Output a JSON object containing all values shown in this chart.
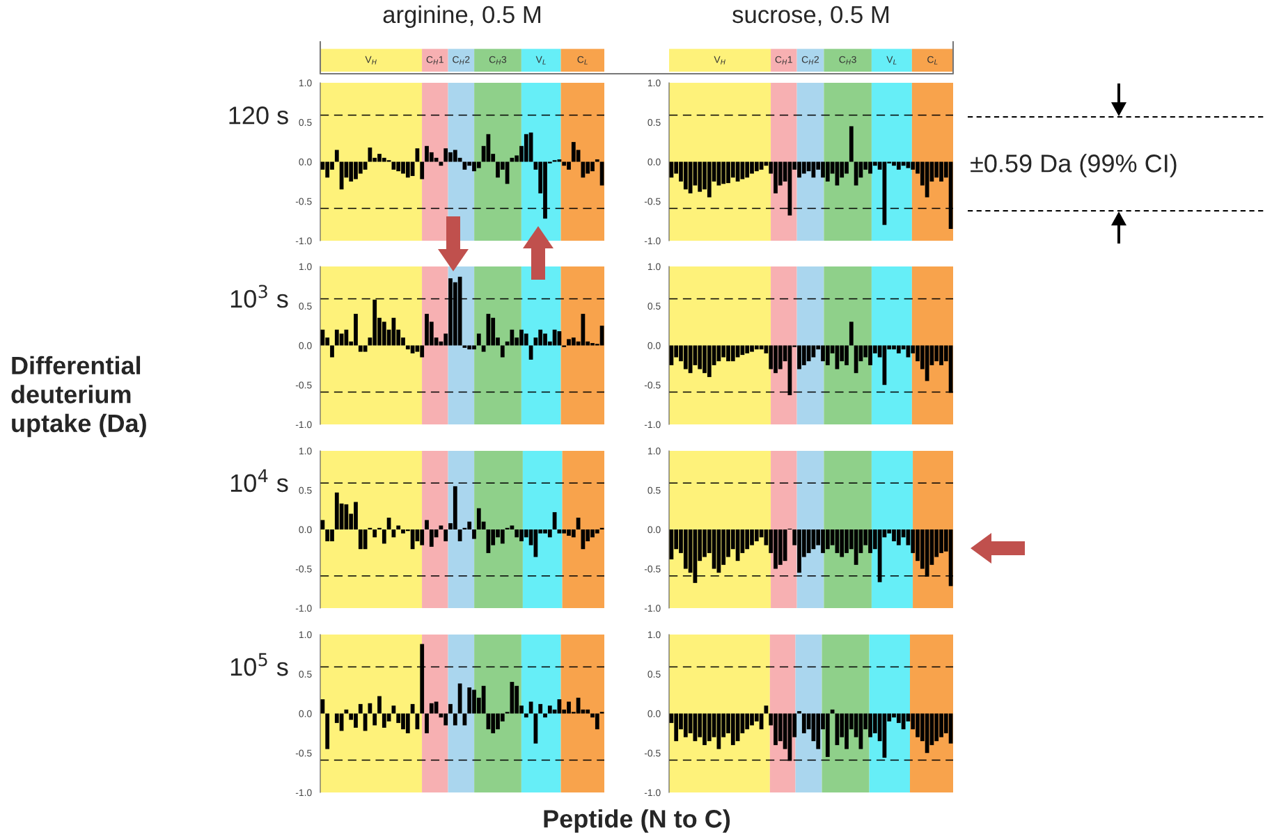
{
  "chart_data": [
    {
      "type": "bar",
      "title": "arginine, 0.5 M",
      "ylabel": "120 s",
      "annotations": [
        "Differential\ndeuterium\nuptake (Da)",
        "V$_{H}$",
        "C$_{H}$1",
        "C$_{H}$2",
        "C$_{H}$3",
        "V$_{L}$",
        "C$_{L}$"
      ],
      "ylim": [
        -1,
        1
      ],
      "yticks": [
        {
          "value": -1,
          "label": "-1.0"
        },
        {
          "value": -0.5,
          "label": "-0.5"
        },
        {
          "value": 0,
          "label": "0.0"
        },
        {
          "value": 0.5,
          "label": "0.5"
        },
        {
          "value": 1,
          "label": "1.0"
        }
      ],
      "tick_labels": "y",
      "ref_lines": [
        {
          "axis": "y",
          "value": 0.59,
          "line_style": "dashed",
          "color": "#000000"
        },
        {
          "axis": "y",
          "value": -0.59,
          "line_style": "dashed",
          "color": "#000000"
        }
      ],
      "categories": [
        null,
        null,
        null,
        null,
        null,
        null,
        null,
        null,
        null,
        null,
        null,
        null,
        null,
        null,
        null,
        null,
        null,
        null,
        null,
        null,
        null,
        null,
        null,
        null,
        null,
        null,
        null,
        null,
        null,
        null,
        null,
        null,
        null,
        null,
        null,
        null,
        null,
        null,
        null,
        null,
        null,
        null,
        null,
        null,
        null,
        null,
        null,
        null,
        null,
        null,
        null,
        null,
        null,
        null,
        null,
        null,
        null,
        null,
        null,
        null
      ],
      "series": [
        {
          "color": "#000000",
          "values": [
            -0.1,
            -0.2,
            -0.1,
            0.15,
            -0.35,
            -0.2,
            -0.25,
            -0.22,
            -0.15,
            -0.1,
            0.18,
            0.05,
            0.1,
            0.05,
            0.02,
            -0.1,
            -0.12,
            -0.15,
            -0.2,
            -0.18,
            0.17,
            -0.22,
            0.2,
            0.12,
            0.05,
            -0.05,
            0.17,
            0.12,
            0.15,
            0.05,
            -0.1,
            -0.05,
            -0.12,
            -0.08,
            0.2,
            0.35,
            0.1,
            -0.2,
            -0.1,
            -0.28,
            0.05,
            0.08,
            0.2,
            0.35,
            0.37,
            -0.1,
            -0.4,
            -0.72,
            -0.02,
            0.02,
            0.03,
            -0.05,
            -0.1,
            0.25,
            0.15,
            -0.2,
            -0.15,
            -0.12,
            0.03,
            -0.3
          ]
        }
      ]
    },
    {
      "type": "bar",
      "title": "sucrose, 0.5 M",
      "annotations": [
        "±0.59 Da (99% CI)",
        "V$_{H}$",
        "C$_{H}$1",
        "C$_{H}$2",
        "C$_{H}$3",
        "V$_{L}$",
        "C$_{L}$"
      ],
      "ylim": [
        -1,
        1
      ],
      "yticks": [
        {
          "value": -1,
          "label": "-1.0"
        },
        {
          "value": -0.5,
          "label": "-0.5"
        },
        {
          "value": 0,
          "label": "0.0"
        },
        {
          "value": 0.5,
          "label": "0.5"
        },
        {
          "value": 1,
          "label": "1.0"
        }
      ],
      "tick_labels": "y",
      "ref_lines": [
        {
          "axis": "y",
          "value": 0.59,
          "line_style": "dashed",
          "color": "#000000"
        },
        {
          "axis": "y",
          "value": -0.59,
          "line_style": "dashed",
          "color": "#000000"
        }
      ],
      "categories": [
        null,
        null,
        null,
        null,
        null,
        null,
        null,
        null,
        null,
        null,
        null,
        null,
        null,
        null,
        null,
        null,
        null,
        null,
        null,
        null,
        null,
        null,
        null,
        null,
        null,
        null,
        null,
        null,
        null,
        null,
        null,
        null,
        null,
        null,
        null,
        null,
        null,
        null,
        null,
        null,
        null,
        null,
        null,
        null,
        null,
        null,
        null,
        null,
        null,
        null,
        null,
        null,
        null,
        null,
        null,
        null,
        null,
        null,
        null,
        null
      ],
      "series": [
        {
          "color": "#000000",
          "values": [
            -0.2,
            -0.15,
            -0.25,
            -0.35,
            -0.4,
            -0.3,
            -0.38,
            -0.35,
            -0.45,
            -0.25,
            -0.3,
            -0.28,
            -0.27,
            -0.2,
            -0.25,
            -0.22,
            -0.2,
            -0.15,
            -0.12,
            -0.1,
            -0.05,
            -0.15,
            -0.4,
            -0.3,
            -0.25,
            -0.68,
            -0.1,
            -0.2,
            -0.15,
            -0.12,
            -0.2,
            -0.1,
            -0.2,
            -0.25,
            -0.15,
            -0.3,
            -0.2,
            -0.15,
            0.45,
            -0.3,
            -0.2,
            -0.1,
            -0.15,
            -0.05,
            -0.1,
            -0.8,
            -0.02,
            -0.05,
            -0.1,
            -0.05,
            -0.08,
            -0.1,
            -0.15,
            -0.3,
            -0.45,
            -0.25,
            -0.2,
            -0.25,
            -0.2,
            -0.85
          ]
        }
      ]
    },
    {
      "type": "bar",
      "ylabel": "10$^{3}$ s",
      "ylim": [
        -1,
        1
      ],
      "yticks": [
        {
          "value": -1,
          "label": "-1.0"
        },
        {
          "value": -0.5,
          "label": "-0.5"
        },
        {
          "value": 0,
          "label": "0.0"
        },
        {
          "value": 0.5,
          "label": "0.5"
        },
        {
          "value": 1,
          "label": "1.0"
        }
      ],
      "tick_labels": "y",
      "ref_lines": [
        {
          "axis": "y",
          "value": 0.59,
          "line_style": "dashed",
          "color": "#000000"
        },
        {
          "axis": "y",
          "value": -0.59,
          "line_style": "dashed",
          "color": "#000000"
        }
      ],
      "categories": [
        null,
        null,
        null,
        null,
        null,
        null,
        null,
        null,
        null,
        null,
        null,
        null,
        null,
        null,
        null,
        null,
        null,
        null,
        null,
        null,
        null,
        null,
        null,
        null,
        null,
        null,
        null,
        null,
        null,
        null,
        null,
        null,
        null,
        null,
        null,
        null,
        null,
        null,
        null,
        null,
        null,
        null,
        null,
        null,
        null,
        null,
        null,
        null,
        null,
        null,
        null,
        null,
        null,
        null,
        null,
        null,
        null,
        null,
        null,
        null
      ],
      "series": [
        {
          "color": "#000000",
          "values": [
            0.2,
            0.1,
            -0.15,
            0.2,
            0.15,
            0.2,
            0.05,
            0.4,
            -0.08,
            -0.08,
            0.1,
            0.58,
            0.35,
            0.3,
            0.2,
            0.35,
            0.2,
            0.1,
            -0.05,
            -0.1,
            -0.08,
            -0.15,
            0.4,
            0.3,
            0.1,
            0.05,
            0.15,
            0.85,
            0.8,
            0.87,
            -0.03,
            -0.05,
            -0.05,
            0.15,
            -0.08,
            0.4,
            0.35,
            0.1,
            -0.15,
            0.05,
            0.2,
            0.1,
            0.2,
            0.15,
            -0.18,
            0.1,
            0.2,
            0.15,
            0.05,
            0.2,
            0.18,
            -0.02,
            0.08,
            0.1,
            0.05,
            0.4,
            0.05,
            0.03,
            0.02,
            0.25
          ]
        }
      ]
    },
    {
      "type": "bar",
      "ylim": [
        -1,
        1
      ],
      "yticks": [
        {
          "value": -1,
          "label": "-1.0"
        },
        {
          "value": -0.5,
          "label": "-0.5"
        },
        {
          "value": 0,
          "label": "0.0"
        },
        {
          "value": 0.5,
          "label": "0.5"
        },
        {
          "value": 1,
          "label": "1.0"
        }
      ],
      "tick_labels": "y",
      "ref_lines": [
        {
          "axis": "y",
          "value": 0.59,
          "line_style": "dashed",
          "color": "#000000"
        },
        {
          "axis": "y",
          "value": -0.59,
          "line_style": "dashed",
          "color": "#000000"
        }
      ],
      "categories": [
        null,
        null,
        null,
        null,
        null,
        null,
        null,
        null,
        null,
        null,
        null,
        null,
        null,
        null,
        null,
        null,
        null,
        null,
        null,
        null,
        null,
        null,
        null,
        null,
        null,
        null,
        null,
        null,
        null,
        null,
        null,
        null,
        null,
        null,
        null,
        null,
        null,
        null,
        null,
        null,
        null,
        null,
        null,
        null,
        null,
        null,
        null,
        null,
        null,
        null,
        null,
        null,
        null,
        null,
        null,
        null,
        null,
        null,
        null,
        null
      ],
      "series": [
        {
          "color": "#000000",
          "values": [
            -0.25,
            -0.15,
            -0.2,
            -0.3,
            -0.35,
            -0.25,
            -0.3,
            -0.35,
            -0.4,
            -0.25,
            -0.2,
            -0.15,
            -0.2,
            -0.2,
            -0.15,
            -0.12,
            -0.1,
            -0.08,
            -0.05,
            -0.05,
            -0.1,
            -0.3,
            -0.35,
            -0.3,
            -0.2,
            -0.63,
            -0.02,
            -0.3,
            -0.25,
            -0.2,
            -0.15,
            -0.05,
            -0.2,
            -0.25,
            -0.1,
            -0.3,
            -0.2,
            -0.25,
            0.3,
            -0.35,
            -0.2,
            -0.15,
            -0.25,
            -0.1,
            -0.15,
            -0.5,
            -0.05,
            -0.05,
            -0.1,
            -0.05,
            -0.15,
            -0.1,
            -0.2,
            -0.3,
            -0.45,
            -0.25,
            -0.2,
            -0.25,
            -0.2,
            -0.6
          ]
        }
      ]
    },
    {
      "type": "bar",
      "ylabel": "10$^{4}$ s",
      "ylim": [
        -1,
        1
      ],
      "yticks": [
        {
          "value": -1,
          "label": "-1.0"
        },
        {
          "value": -0.5,
          "label": "-0.5"
        },
        {
          "value": 0,
          "label": "0.0"
        },
        {
          "value": 0.5,
          "label": "0.5"
        },
        {
          "value": 1,
          "label": "1.0"
        }
      ],
      "tick_labels": "y",
      "ref_lines": [
        {
          "axis": "y",
          "value": 0.59,
          "line_style": "dashed",
          "color": "#000000"
        },
        {
          "axis": "y",
          "value": -0.59,
          "line_style": "dashed",
          "color": "#000000"
        }
      ],
      "categories": [
        null,
        null,
        null,
        null,
        null,
        null,
        null,
        null,
        null,
        null,
        null,
        null,
        null,
        null,
        null,
        null,
        null,
        null,
        null,
        null,
        null,
        null,
        null,
        null,
        null,
        null,
        null,
        null,
        null,
        null,
        null,
        null,
        null,
        null,
        null,
        null,
        null,
        null,
        null,
        null,
        null,
        null,
        null,
        null,
        null,
        null,
        null,
        null,
        null,
        null,
        null,
        null,
        null,
        null,
        null,
        null,
        null,
        null,
        null,
        null
      ],
      "series": [
        {
          "color": "#000000",
          "values": [
            0.12,
            -0.15,
            -0.15,
            0.47,
            0.33,
            0.32,
            0.2,
            0.35,
            -0.25,
            -0.25,
            0.02,
            -0.1,
            0.02,
            -0.18,
            0.15,
            -0.1,
            0.05,
            -0.05,
            -0.02,
            -0.25,
            -0.15,
            -0.2,
            0.12,
            -0.22,
            -0.1,
            0.05,
            -0.15,
            0.08,
            0.55,
            -0.15,
            0.02,
            0.1,
            -0.12,
            0.27,
            0.1,
            -0.3,
            -0.2,
            -0.1,
            -0.18,
            0.02,
            0.05,
            -0.1,
            -0.15,
            -0.1,
            -0.2,
            -0.35,
            -0.05,
            -0.05,
            -0.1,
            0.22,
            -0.05,
            -0.05,
            -0.08,
            -0.1,
            0.15,
            -0.25,
            -0.15,
            -0.1,
            -0.05,
            0.02
          ]
        }
      ]
    },
    {
      "type": "bar",
      "ylim": [
        -1,
        1
      ],
      "yticks": [
        {
          "value": -1,
          "label": "-1.0"
        },
        {
          "value": -0.5,
          "label": "-0.5"
        },
        {
          "value": 0,
          "label": "0.0"
        },
        {
          "value": 0.5,
          "label": "0.5"
        },
        {
          "value": 1,
          "label": "1.0"
        }
      ],
      "tick_labels": "y",
      "ref_lines": [
        {
          "axis": "y",
          "value": 0.59,
          "line_style": "dashed",
          "color": "#000000"
        },
        {
          "axis": "y",
          "value": -0.59,
          "line_style": "dashed",
          "color": "#000000"
        }
      ],
      "categories": [
        null,
        null,
        null,
        null,
        null,
        null,
        null,
        null,
        null,
        null,
        null,
        null,
        null,
        null,
        null,
        null,
        null,
        null,
        null,
        null,
        null,
        null,
        null,
        null,
        null,
        null,
        null,
        null,
        null,
        null,
        null,
        null,
        null,
        null,
        null,
        null,
        null,
        null,
        null,
        null,
        null,
        null,
        null,
        null,
        null,
        null,
        null,
        null,
        null,
        null,
        null,
        null,
        null,
        null,
        null,
        null,
        null,
        null,
        null,
        null
      ],
      "series": [
        {
          "color": "#000000",
          "values": [
            -0.38,
            -0.25,
            -0.3,
            -0.5,
            -0.55,
            -0.68,
            -0.4,
            -0.35,
            -0.3,
            -0.5,
            -0.55,
            -0.45,
            -0.35,
            -0.25,
            -0.4,
            -0.3,
            -0.25,
            -0.2,
            -0.15,
            -0.1,
            -0.2,
            -0.3,
            -0.5,
            -0.45,
            -0.4,
            0.01,
            -0.2,
            -0.55,
            -0.35,
            -0.3,
            -0.25,
            -0.2,
            -0.3,
            -0.25,
            -0.2,
            -0.3,
            -0.35,
            -0.3,
            -0.25,
            -0.45,
            -0.3,
            -0.2,
            -0.3,
            -0.25,
            -0.67,
            -0.1,
            -0.05,
            -0.15,
            -0.2,
            -0.1,
            -0.2,
            -0.3,
            -0.4,
            -0.5,
            -0.6,
            -0.45,
            -0.35,
            -0.3,
            -0.28,
            -0.72
          ]
        }
      ]
    },
    {
      "type": "bar",
      "ylabel": "10$^{5}$ s",
      "xlabel": "Peptide (N to C)",
      "ylim": [
        -1,
        1
      ],
      "yticks": [
        {
          "value": -1,
          "label": "-1.0"
        },
        {
          "value": -0.5,
          "label": "-0.5"
        },
        {
          "value": 0,
          "label": "0.0"
        },
        {
          "value": 0.5,
          "label": "0.5"
        },
        {
          "value": 1,
          "label": "1.0"
        }
      ],
      "tick_labels": "y",
      "ref_lines": [
        {
          "axis": "y",
          "value": 0.59,
          "line_style": "dashed",
          "color": "#000000"
        },
        {
          "axis": "y",
          "value": -0.59,
          "line_style": "dashed",
          "color": "#000000"
        }
      ],
      "categories": [
        null,
        null,
        null,
        null,
        null,
        null,
        null,
        null,
        null,
        null,
        null,
        null,
        null,
        null,
        null,
        null,
        null,
        null,
        null,
        null,
        null,
        null,
        null,
        null,
        null,
        null,
        null,
        null,
        null,
        null,
        null,
        null,
        null,
        null,
        null,
        null,
        null,
        null,
        null,
        null,
        null,
        null,
        null,
        null,
        null,
        null,
        null,
        null,
        null,
        null,
        null,
        null,
        null,
        null,
        null,
        null,
        null,
        null,
        null,
        null
      ],
      "series": [
        {
          "color": "#000000",
          "values": [
            0.18,
            -0.45,
            0.0,
            -0.12,
            -0.22,
            0.05,
            -0.08,
            -0.18,
            0.12,
            -0.22,
            0.13,
            -0.15,
            0.22,
            -0.18,
            -0.1,
            0.1,
            -0.12,
            -0.2,
            -0.25,
            0.12,
            -0.2,
            0.88,
            -0.25,
            0.13,
            0.15,
            -0.05,
            -0.15,
            0.12,
            -0.15,
            0.38,
            -0.15,
            0.33,
            0.3,
            0.2,
            0.35,
            -0.2,
            -0.25,
            -0.2,
            -0.1,
            0.02,
            0.4,
            0.35,
            0.1,
            -0.05,
            0.15,
            -0.38,
            0.12,
            -0.05,
            0.1,
            0.05,
            0.18,
            0.05,
            0.15,
            0.02,
            0.2,
            0.05,
            0.05,
            -0.05,
            -0.2,
            0.02
          ]
        }
      ]
    },
    {
      "type": "bar",
      "ylim": [
        -1,
        1
      ],
      "yticks": [
        {
          "value": -1,
          "label": "-1.0"
        },
        {
          "value": -0.5,
          "label": "-0.5"
        },
        {
          "value": 0,
          "label": "0.0"
        },
        {
          "value": 0.5,
          "label": "0.5"
        },
        {
          "value": 1,
          "label": "1.0"
        }
      ],
      "tick_labels": "y",
      "ref_lines": [
        {
          "axis": "y",
          "value": 0.59,
          "line_style": "dashed",
          "color": "#000000"
        },
        {
          "axis": "y",
          "value": -0.59,
          "line_style": "dashed",
          "color": "#000000"
        }
      ],
      "categories": [
        null,
        null,
        null,
        null,
        null,
        null,
        null,
        null,
        null,
        null,
        null,
        null,
        null,
        null,
        null,
        null,
        null,
        null,
        null,
        null,
        null,
        null,
        null,
        null,
        null,
        null,
        null,
        null,
        null,
        null,
        null,
        null,
        null,
        null,
        null,
        null,
        null,
        null,
        null,
        null,
        null,
        null,
        null,
        null,
        null,
        null,
        null,
        null,
        null,
        null,
        null,
        null,
        null,
        null,
        null,
        null,
        null,
        null,
        null,
        null
      ],
      "series": [
        {
          "color": "#000000",
          "values": [
            -0.12,
            -0.35,
            -0.2,
            -0.3,
            -0.25,
            -0.35,
            -0.3,
            -0.4,
            -0.35,
            -0.3,
            -0.45,
            -0.3,
            -0.25,
            -0.4,
            -0.35,
            -0.25,
            -0.2,
            -0.15,
            -0.1,
            -0.2,
            0.1,
            -0.15,
            -0.4,
            -0.35,
            -0.45,
            -0.6,
            -0.3,
            0.03,
            -0.25,
            -0.2,
            -0.35,
            -0.45,
            -0.2,
            -0.55,
            0.05,
            -0.4,
            -0.3,
            -0.45,
            -0.2,
            -0.3,
            -0.45,
            -0.2,
            -0.3,
            -0.25,
            -0.35,
            -0.56,
            -0.1,
            -0.05,
            -0.12,
            -0.2,
            -0.1,
            -0.2,
            -0.3,
            -0.35,
            -0.5,
            -0.4,
            -0.35,
            -0.3,
            -0.25,
            -0.38
          ]
        }
      ]
    }
  ]
}
